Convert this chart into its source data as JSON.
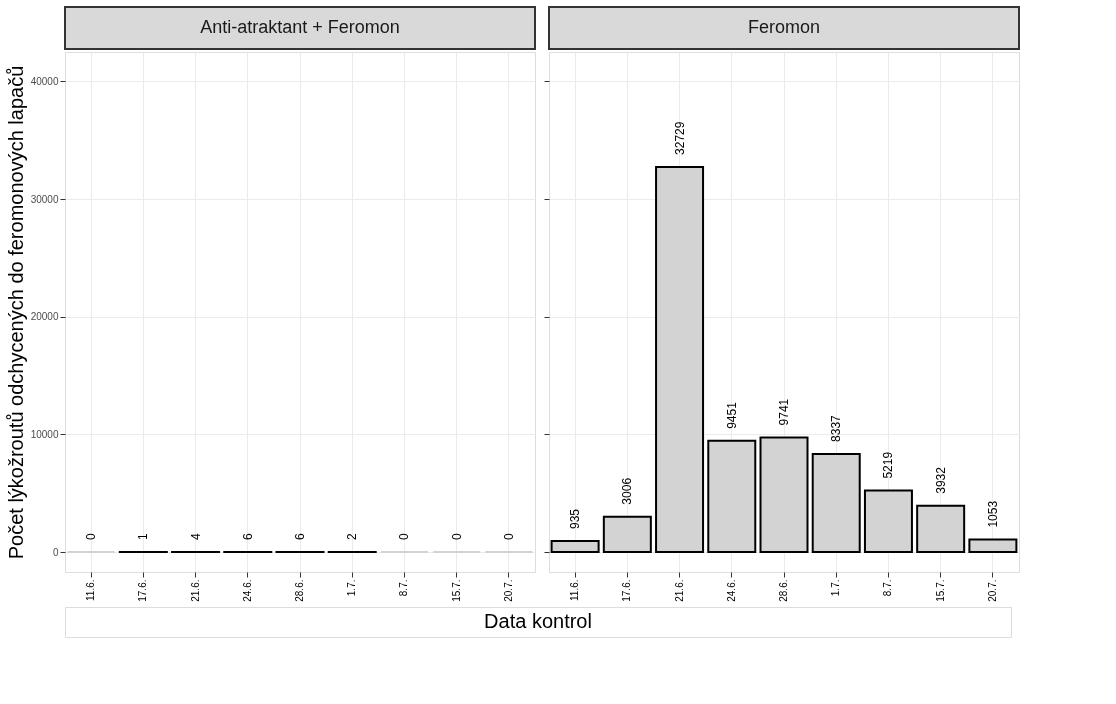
{
  "chart_data": [
    {
      "type": "bar",
      "title": "Anti-atraktant + Feromon",
      "xlabel": "Data kontrol",
      "ylabel": "Počet lýkožroutů odchycených do feromonových lapačů",
      "categories": [
        "11.6.",
        "17.6.",
        "21.6.",
        "24.6.",
        "28.6.",
        "1.7.",
        "8.7.",
        "15.7.",
        "20.7."
      ],
      "series": [
        {
          "color": "#d3d3d3",
          "values": [
            0,
            1,
            4,
            6,
            6,
            2,
            0,
            0,
            0
          ]
        }
      ],
      "ylim": [
        -1700,
        42500
      ],
      "yticks": [
        0,
        10000,
        20000,
        30000,
        40000
      ],
      "grid": true,
      "data_labels": true
    },
    {
      "type": "bar",
      "title": "Feromon",
      "categories": [
        "11.6.",
        "17.6.",
        "21.6.",
        "24.6.",
        "28.6.",
        "1.7.",
        "8.7.",
        "15.7.",
        "20.7."
      ],
      "series": [
        {
          "color": "#d3d3d3",
          "values": [
            935,
            3006,
            32729,
            9451,
            9741,
            8337,
            5219,
            3932,
            1053
          ]
        }
      ],
      "ylim": [
        -1700,
        42500
      ],
      "yticks": [
        0,
        10000,
        20000,
        30000,
        40000
      ],
      "grid": true,
      "data_labels": true,
      "tick_labels": "x"
    }
  ]
}
